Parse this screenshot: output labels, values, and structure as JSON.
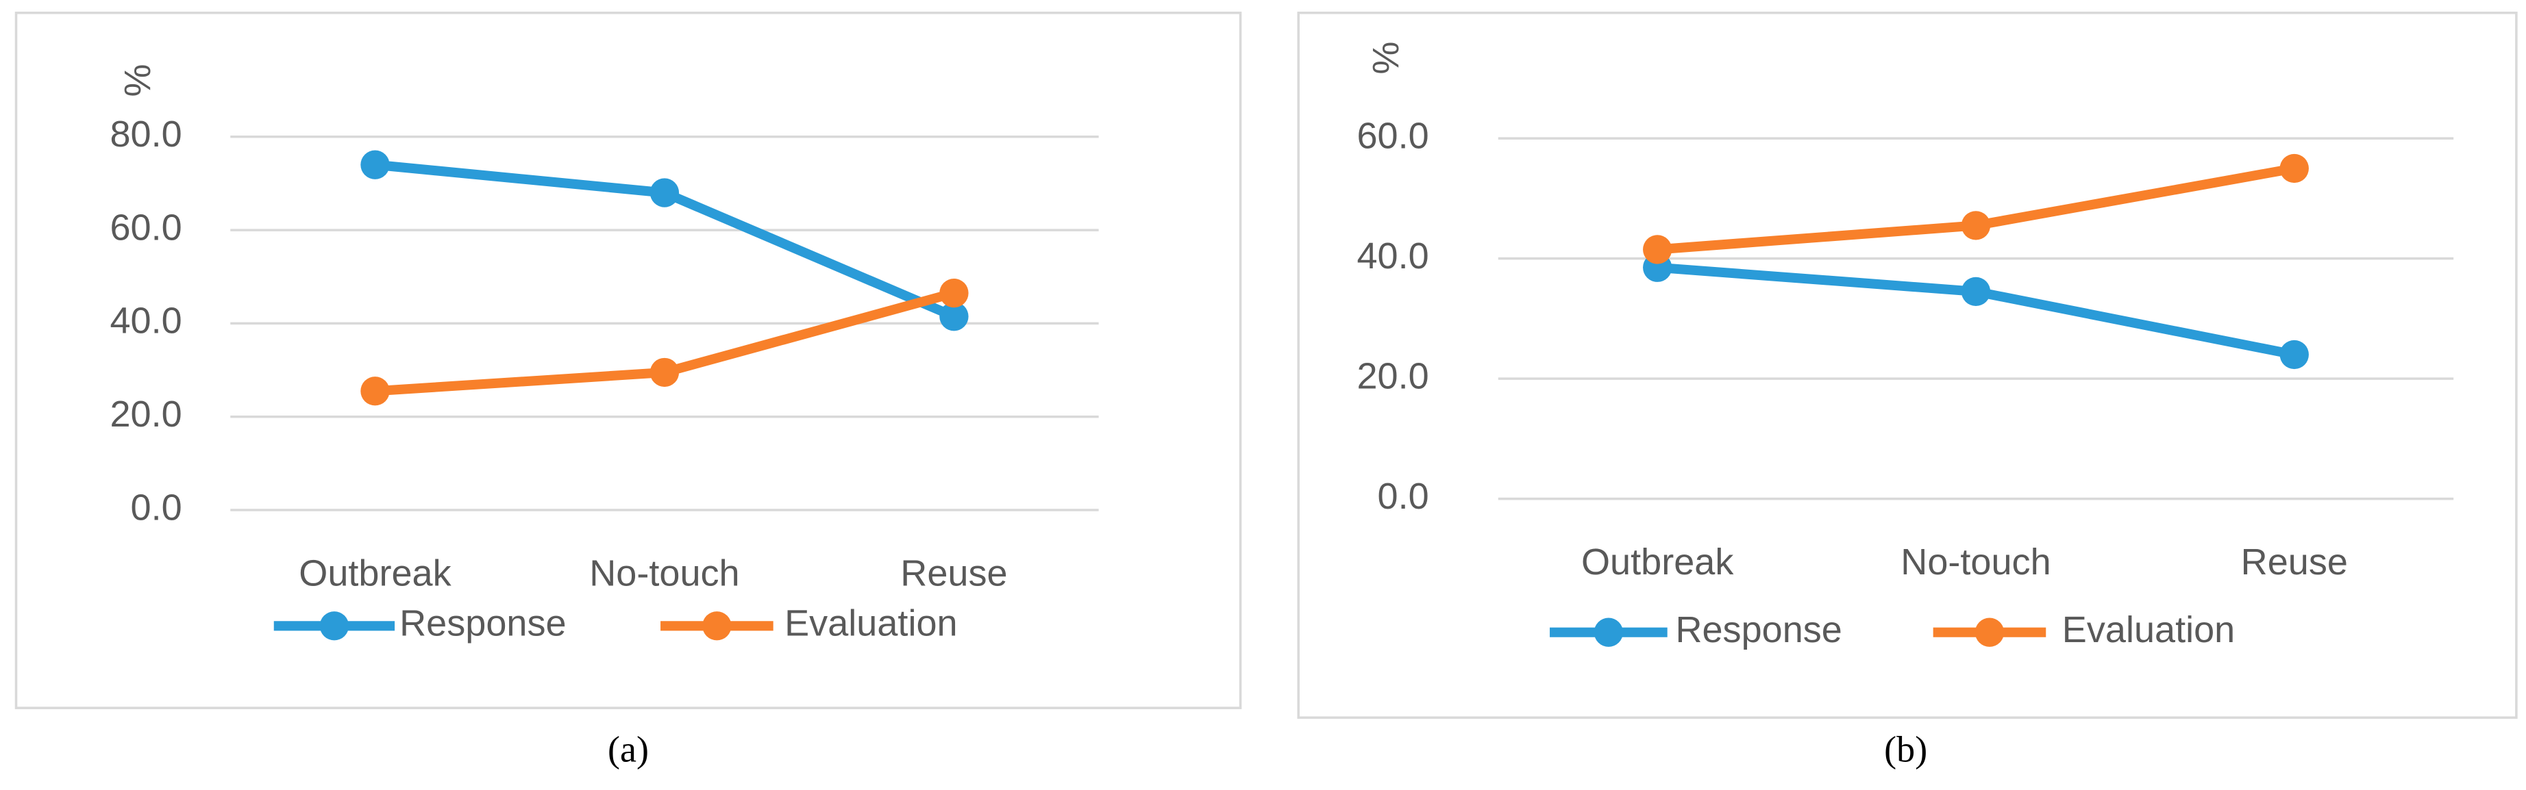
{
  "chart_data": [
    {
      "type": "line",
      "caption": "(a)",
      "y_label": "%",
      "categories": [
        "Outbreak",
        "No-touch",
        "Reuse"
      ],
      "series": [
        {
          "name": "Response",
          "color": "#2a9bd8",
          "values": [
            74,
            68,
            41.5
          ]
        },
        {
          "name": "Evaluation",
          "color": "#f8802a",
          "values": [
            25.5,
            29.5,
            46.5
          ]
        }
      ],
      "ylim": [
        0,
        80
      ],
      "yticks": [
        {
          "value": 0,
          "label": "0.0"
        },
        {
          "value": 20,
          "label": "20.0"
        },
        {
          "value": 40,
          "label": "40.0"
        },
        {
          "value": 60,
          "label": "60.0"
        },
        {
          "value": 80,
          "label": "80.0"
        }
      ],
      "grid": true,
      "legend": "bottom"
    },
    {
      "type": "line",
      "caption": "(b)",
      "y_label": "%",
      "categories": [
        "Outbreak",
        "No-touch",
        "Reuse"
      ],
      "series": [
        {
          "name": "Response",
          "color": "#2a9bd8",
          "values": [
            38.5,
            34.5,
            24
          ]
        },
        {
          "name": "Evaluation",
          "color": "#f8802a",
          "values": [
            41.5,
            45.5,
            55
          ]
        }
      ],
      "ylim": [
        0,
        60
      ],
      "yticks": [
        {
          "value": 0,
          "label": "0.0"
        },
        {
          "value": 20,
          "label": "20.0"
        },
        {
          "value": 40,
          "label": "40.0"
        },
        {
          "value": 60,
          "label": "60.0"
        }
      ],
      "grid": true,
      "legend": "bottom"
    }
  ]
}
